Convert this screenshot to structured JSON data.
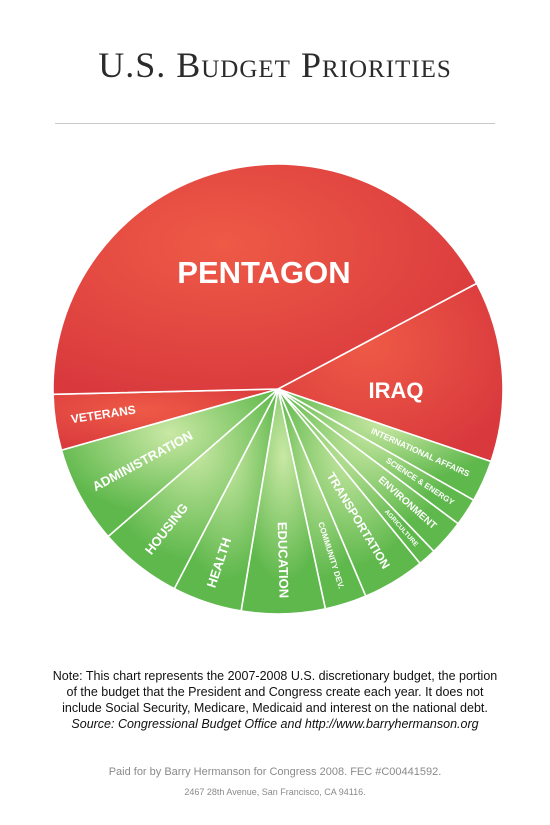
{
  "page": {
    "title": "U.S. Budget Priorities",
    "note_lines": [
      "Note: This chart represents the 2007-2008 U.S. discretionary budget, the portion",
      "of the budget that the President and Congress create each year. It does not",
      "include Social Security, Medicare, Medicaid and interest on the national debt."
    ],
    "source": "Source: Congressional Budget Office and http://www.barryhermanson.org",
    "paid_for": "Paid for by Barry Hermanson for Congress 2008. FEC #C00441592.",
    "address": "2467 28th Avenue, San Francisco, CA 94116."
  },
  "colors": {
    "military": "#d9393d",
    "military_light": "#ee5a46",
    "domestic": "#5fb84c",
    "domestic_light": "#c9e8a4",
    "divider": "#ffffff"
  },
  "chart_data": {
    "type": "pie",
    "title": "U.S. Budget Priorities",
    "start_angle_deg": 332,
    "direction": "clockwise",
    "slices": [
      {
        "label": "IRAQ",
        "value": 13.0,
        "group": "military",
        "size": 22
      },
      {
        "label": "INTERNATIONAL AFFAIRS",
        "value": 3.0,
        "group": "domestic",
        "size": 8.5
      },
      {
        "label": "SCIENCE & ENERGY",
        "value": 2.0,
        "group": "domestic",
        "size": 8
      },
      {
        "label": "ENVIRONMENT",
        "value": 2.6,
        "group": "domestic",
        "size": 10
      },
      {
        "label": "AGRICULTURE",
        "value": 1.3,
        "group": "domestic",
        "size": 6.5
      },
      {
        "label": "TRANSPORTATION",
        "value": 4.5,
        "group": "domestic",
        "size": 12
      },
      {
        "label": "COMMUNITY DEV.",
        "value": 3.0,
        "group": "domestic",
        "size": 8
      },
      {
        "label": "EDUCATION",
        "value": 6.0,
        "group": "domestic",
        "size": 13
      },
      {
        "label": "HEALTH",
        "value": 5.0,
        "group": "domestic",
        "size": 13
      },
      {
        "label": "HOUSING",
        "value": 6.0,
        "group": "domestic",
        "size": 13
      },
      {
        "label": "ADMINISTRATION",
        "value": 7.0,
        "group": "domestic",
        "size": 13
      },
      {
        "label": "VETERANS",
        "value": 4.0,
        "group": "military",
        "size": 12
      },
      {
        "label": "PENTAGON",
        "value": 42.6,
        "group": "military",
        "size": 31
      }
    ]
  }
}
